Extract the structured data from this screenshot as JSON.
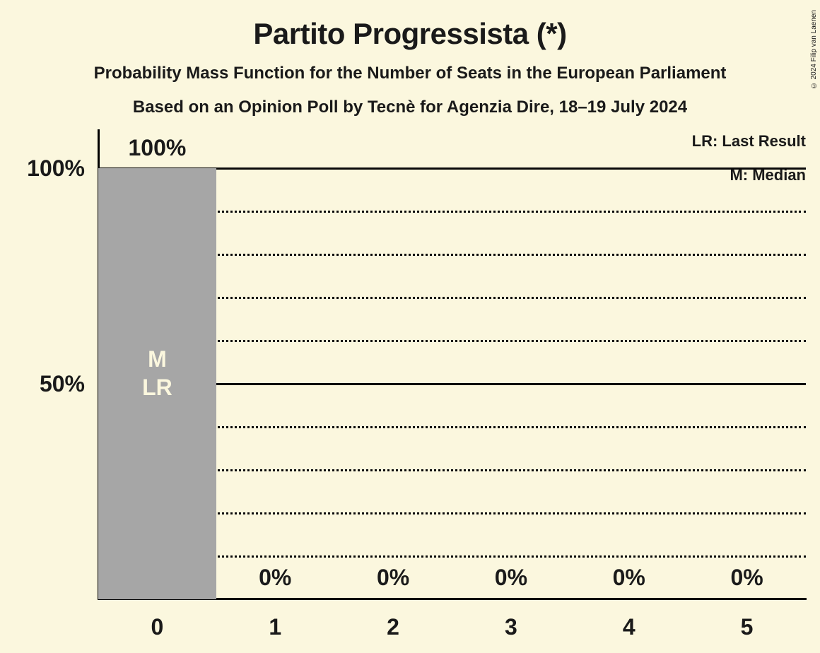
{
  "page": {
    "title": "Partito Progressista (*)",
    "subtitle1": "Probability Mass Function for the Number of Seats in the European Parliament",
    "subtitle2": "Based on an Opinion Poll by Tecnè for Agenzia Dire, 18–19 July 2024",
    "copyright": "© 2024 Filip van Laenen"
  },
  "legend": {
    "lr": "LR: Last Result",
    "m": "M: Median"
  },
  "colors": {
    "background": "#FBF7DE",
    "text": "#1A1A1A",
    "bar": "#A6A6A6",
    "bar_annotation": "#FBF7DE",
    "axis": "#000000"
  },
  "chart_data": {
    "type": "bar",
    "title": "Partito Progressista (*)",
    "xlabel": "",
    "ylabel": "",
    "categories": [
      "0",
      "1",
      "2",
      "3",
      "4",
      "5"
    ],
    "values": [
      100,
      0,
      0,
      0,
      0,
      0
    ],
    "value_labels": [
      "100%",
      "0%",
      "0%",
      "0%",
      "0%",
      "0%"
    ],
    "bar_annotations": [
      [
        "M",
        "LR"
      ],
      [],
      [],
      [],
      [],
      []
    ],
    "median_seats": "0",
    "last_result_seats": "0",
    "ylim": [
      0,
      100
    ],
    "yticks": [
      {
        "value": 100,
        "label": "100%"
      },
      {
        "value": 50,
        "label": "50%"
      }
    ],
    "gridlines": [
      {
        "value": 100,
        "style": "solid"
      },
      {
        "value": 90,
        "style": "dotted"
      },
      {
        "value": 80,
        "style": "dotted"
      },
      {
        "value": 70,
        "style": "dotted"
      },
      {
        "value": 60,
        "style": "dotted"
      },
      {
        "value": 50,
        "style": "solid"
      },
      {
        "value": 40,
        "style": "dotted"
      },
      {
        "value": 30,
        "style": "dotted"
      },
      {
        "value": 20,
        "style": "dotted"
      },
      {
        "value": 10,
        "style": "dotted"
      }
    ],
    "grid": "horizontal",
    "legend_position": "top-right"
  }
}
